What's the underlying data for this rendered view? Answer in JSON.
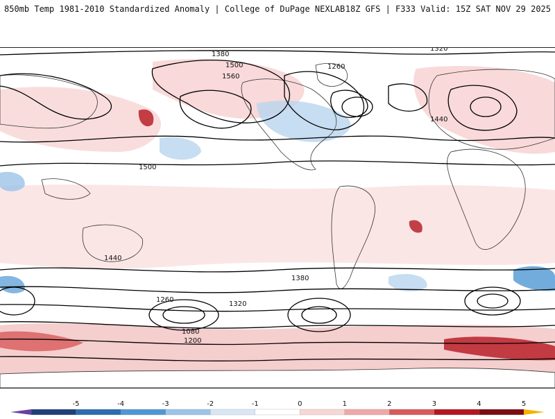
{
  "header": {
    "title_left": "850mb Temp 1981-2010 Standardized Anomaly | College of DuPage NEXLAB",
    "title_right": "18Z GFS | F333 Valid: 15Z SAT NOV 29 2025"
  },
  "colors": {
    "land_line": "#333333",
    "contour_line": "#000000",
    "neg_strong": "#1e3f7a",
    "neg_mid": "#3d85c6",
    "neg_light": "#b8d4ef",
    "pos_light": "#f7cfcf",
    "pos_mid": "#e58d8d",
    "pos_strong": "#a30f1a"
  },
  "contour_labels": [
    "1380",
    "1320",
    "1500",
    "1560",
    "1260",
    "1440",
    "1200",
    "1080"
  ],
  "map_labels": [
    {
      "text": "1380",
      "group": "north"
    },
    {
      "text": "1320",
      "group": "north"
    },
    {
      "text": "1500",
      "group": "north"
    },
    {
      "text": "1560",
      "group": "north"
    },
    {
      "text": "1260",
      "group": "north"
    },
    {
      "text": "1440",
      "group": "north"
    },
    {
      "text": "1500",
      "group": "tropics"
    },
    {
      "text": "1440",
      "group": "south"
    },
    {
      "text": "1380",
      "group": "south"
    },
    {
      "text": "1320",
      "group": "south"
    },
    {
      "text": "1260",
      "group": "south"
    },
    {
      "text": "1200",
      "group": "south"
    },
    {
      "text": "1080",
      "group": "south"
    }
  ],
  "colorbar": {
    "ticks": [
      "-5",
      "-4",
      "-3",
      "-2",
      "-1",
      "0",
      "1",
      "2",
      "3",
      "4",
      "5"
    ],
    "colors": [
      "#6a3fa0",
      "#1e3f7a",
      "#2c6db1",
      "#4f97d3",
      "#9cc3e8",
      "#d9e7f5",
      "#ffffff",
      "#f7d6d6",
      "#eea8a8",
      "#d85a5a",
      "#b5151f",
      "#7d0b12",
      "#f3b400"
    ]
  }
}
